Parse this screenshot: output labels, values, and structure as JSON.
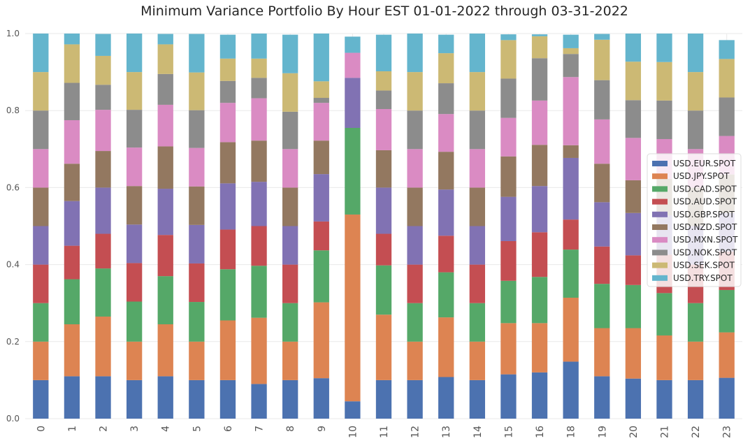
{
  "chart_data": {
    "type": "bar",
    "stacked": true,
    "title": "Minimum Variance Portfolio By Hour EST 01-01-2022 through 03-31-2022",
    "xlabel": "",
    "ylabel": "",
    "ylim": [
      0,
      1.0
    ],
    "yticks": [
      "0.0",
      "0.2",
      "0.4",
      "0.6",
      "0.8",
      "1.0"
    ],
    "grid": true,
    "legend_position": "center-right",
    "categories": [
      "0",
      "1",
      "2",
      "3",
      "4",
      "5",
      "6",
      "7",
      "8",
      "9",
      "10",
      "11",
      "12",
      "13",
      "14",
      "15",
      "16",
      "18",
      "19",
      "20",
      "21",
      "22",
      "23"
    ],
    "series": [
      {
        "name": "USD.EUR.SPOT",
        "color": "#4c72b0",
        "values": [
          0.1,
          0.11,
          0.11,
          0.1,
          0.11,
          0.1,
          0.1,
          0.09,
          0.1,
          0.105,
          0.045,
          0.1,
          0.1,
          0.108,
          0.1,
          0.115,
          0.12,
          0.148,
          0.11,
          0.104,
          0.1,
          0.1,
          0.106
        ]
      },
      {
        "name": "USD.JPY.SPOT",
        "color": "#dd8452",
        "values": [
          0.1,
          0.135,
          0.155,
          0.1,
          0.135,
          0.1,
          0.155,
          0.172,
          0.1,
          0.197,
          0.485,
          0.17,
          0.1,
          0.155,
          0.1,
          0.133,
          0.128,
          0.166,
          0.125,
          0.131,
          0.116,
          0.1,
          0.118
        ]
      },
      {
        "name": "USD.CAD.SPOT",
        "color": "#55a868",
        "values": [
          0.1,
          0.117,
          0.125,
          0.104,
          0.125,
          0.103,
          0.133,
          0.135,
          0.1,
          0.135,
          0.225,
          0.128,
          0.1,
          0.117,
          0.1,
          0.11,
          0.12,
          0.125,
          0.115,
          0.112,
          0.11,
          0.1,
          0.11
        ]
      },
      {
        "name": "USD.AUD.SPOT",
        "color": "#c44e52",
        "values": [
          0.1,
          0.087,
          0.09,
          0.1,
          0.107,
          0.1,
          0.103,
          0.103,
          0.1,
          0.075,
          0,
          0.082,
          0.1,
          0.095,
          0.1,
          0.103,
          0.116,
          0.078,
          0.097,
          0.077,
          0.1,
          0.1,
          0.1
        ]
      },
      {
        "name": "USD.GBP.SPOT",
        "color": "#8172b3",
        "values": [
          0.1,
          0.116,
          0.12,
          0.1,
          0.12,
          0.1,
          0.12,
          0.115,
          0.1,
          0.123,
          0.13,
          0.12,
          0.1,
          0.12,
          0.1,
          0.115,
          0.12,
          0.16,
          0.115,
          0.11,
          0.102,
          0.1,
          0.1
        ]
      },
      {
        "name": "USD.NZD.SPOT",
        "color": "#937860",
        "values": [
          0.1,
          0.097,
          0.095,
          0.1,
          0.11,
          0.1,
          0.107,
          0.107,
          0.1,
          0.087,
          0,
          0.097,
          0.1,
          0.098,
          0.1,
          0.105,
          0.107,
          0.033,
          0.1,
          0.085,
          0.095,
          0.1,
          0.1
        ]
      },
      {
        "name": "USD.MXN.SPOT",
        "color": "#da8bc3",
        "values": [
          0.1,
          0.113,
          0.107,
          0.1,
          0.108,
          0.1,
          0.102,
          0.11,
          0.1,
          0.098,
          0.065,
          0.107,
          0.1,
          0.098,
          0.1,
          0.1,
          0.115,
          0.177,
          0.115,
          0.11,
          0.103,
          0.1,
          0.1
        ]
      },
      {
        "name": "USD.NOK.SPOT",
        "color": "#8c8c8c",
        "values": [
          0.1,
          0.097,
          0.065,
          0.098,
          0.08,
          0.098,
          0.057,
          0.053,
          0.097,
          0.013,
          0,
          0.048,
          0.1,
          0.08,
          0.1,
          0.102,
          0.11,
          0.06,
          0.102,
          0.098,
          0.1,
          0.1,
          0.1
        ]
      },
      {
        "name": "USD.SEK.SPOT",
        "color": "#ccb974",
        "values": [
          0.1,
          0.1,
          0.075,
          0.098,
          0.077,
          0.098,
          0.058,
          0.05,
          0.1,
          0.043,
          0,
          0.05,
          0.1,
          0.078,
          0.1,
          0.1,
          0.057,
          0.015,
          0.105,
          0.1,
          0.1,
          0.1,
          0.1
        ]
      },
      {
        "name": "USD.TRY.SPOT",
        "color": "#64b5cd",
        "values": [
          0.1,
          0.028,
          0.057,
          0.1,
          0.027,
          0.1,
          0.062,
          0.066,
          0.1,
          0.124,
          0.042,
          0.095,
          0.1,
          0.048,
          0.1,
          0.015,
          0.005,
          0.035,
          0.015,
          0.073,
          0.09,
          0.1,
          0.049
        ]
      }
    ]
  }
}
